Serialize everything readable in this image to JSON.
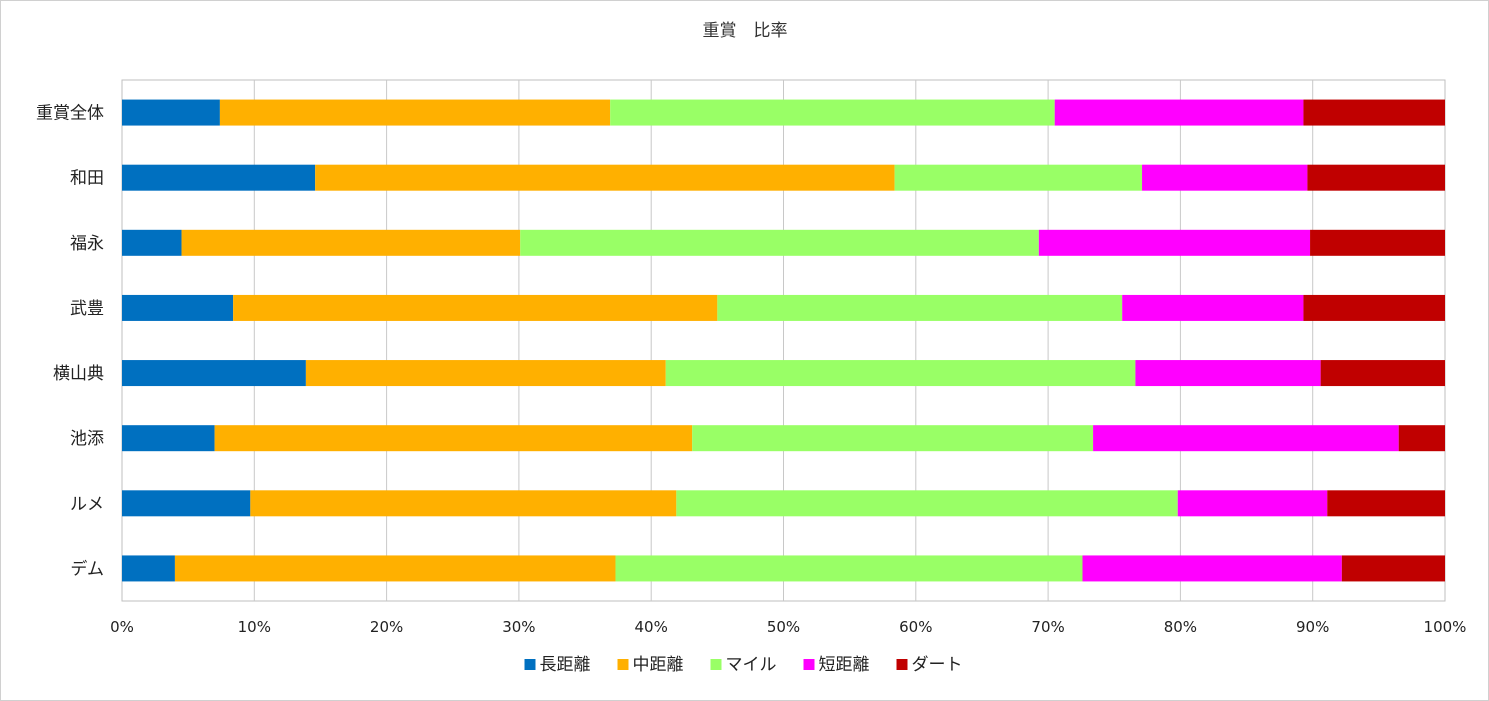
{
  "chart_data": {
    "type": "bar",
    "orientation": "horizontal",
    "stacked": "percent",
    "title": "重賞　比率",
    "xlabel": "",
    "ylabel": "",
    "xlim": [
      0,
      100
    ],
    "x_ticks": [
      "0%",
      "10%",
      "20%",
      "30%",
      "40%",
      "50%",
      "60%",
      "70%",
      "80%",
      "90%",
      "100%"
    ],
    "grid": true,
    "legend_position": "bottom",
    "categories": [
      "重賞全体",
      "和田",
      "福永",
      "武豊",
      "横山典",
      "池添",
      "ルメ",
      "デム"
    ],
    "series": [
      {
        "name": "長距離",
        "color": "#0070C0",
        "values": [
          7.4,
          14.6,
          4.5,
          8.4,
          13.9,
          7.0,
          9.7,
          4.0
        ]
      },
      {
        "name": "中距離",
        "color": "#FFB000",
        "values": [
          29.5,
          43.8,
          25.6,
          36.6,
          27.2,
          36.1,
          32.2,
          33.3
        ]
      },
      {
        "name": "マイル",
        "color": "#99FF66",
        "values": [
          33.6,
          18.7,
          39.2,
          30.6,
          35.5,
          30.3,
          37.9,
          35.3
        ]
      },
      {
        "name": "短距離",
        "color": "#FF00FF",
        "values": [
          18.8,
          12.5,
          20.5,
          13.7,
          14.0,
          23.1,
          11.3,
          19.6
        ]
      },
      {
        "name": "ダート",
        "color": "#C00000",
        "values": [
          10.7,
          10.4,
          10.2,
          10.7,
          9.4,
          3.5,
          8.9,
          7.8
        ]
      }
    ]
  }
}
